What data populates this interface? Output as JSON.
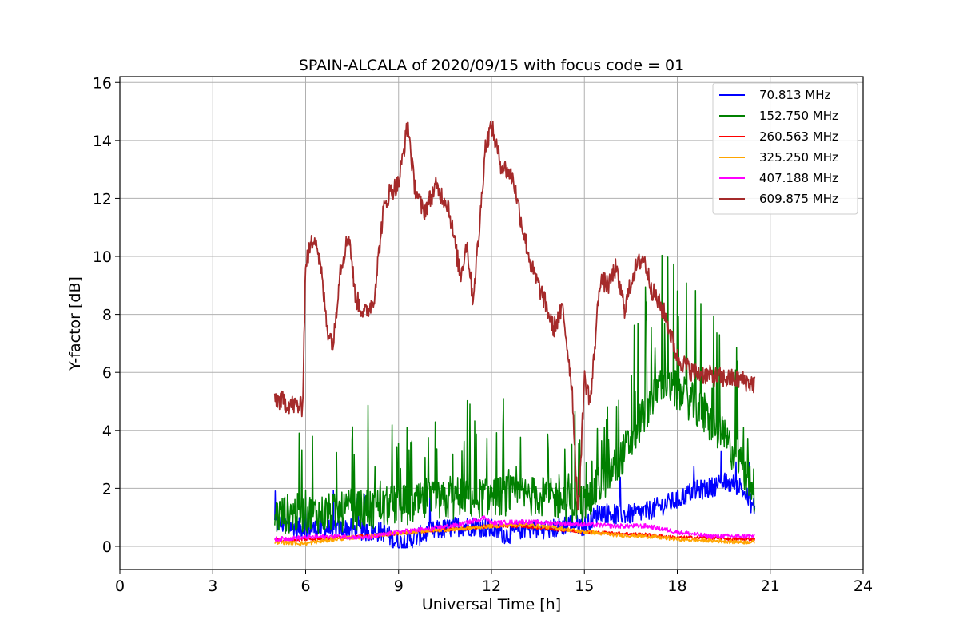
{
  "chart_data": {
    "type": "line",
    "title": "SPAIN-ALCALA of 2020/09/15 with focus code = 01",
    "xlabel": "Universal Time [h]",
    "ylabel": "Y-factor [dB]",
    "xlim": [
      0,
      24
    ],
    "ylim": [
      -0.8,
      16.2
    ],
    "xticks": [
      0,
      3,
      6,
      9,
      12,
      15,
      18,
      21,
      24
    ],
    "yticks": [
      0,
      2,
      4,
      6,
      8,
      10,
      12,
      14,
      16
    ],
    "grid": true,
    "legend_position": "upper right",
    "series": [
      {
        "name": " 70.813 MHz",
        "color": "#0000ff",
        "x": [
          5.0,
          5.5,
          6.0,
          6.5,
          7.0,
          7.5,
          8.0,
          8.5,
          9.0,
          9.5,
          10.0,
          10.5,
          11.0,
          11.5,
          12.0,
          12.5,
          13.0,
          13.5,
          14.0,
          14.5,
          15.0,
          15.5,
          16.0,
          16.5,
          17.0,
          17.5,
          18.0,
          18.5,
          19.0,
          19.5,
          20.0,
          20.5
        ],
        "y": [
          0.8,
          0.7,
          0.6,
          0.6,
          0.6,
          0.6,
          0.5,
          0.5,
          0.1,
          0.3,
          0.5,
          0.6,
          0.7,
          0.7,
          0.6,
          0.4,
          0.6,
          0.6,
          0.6,
          0.8,
          0.7,
          1.2,
          1.1,
          1.1,
          1.2,
          1.4,
          1.6,
          1.9,
          2.0,
          2.2,
          2.1,
          1.3
        ],
        "noise": 0.35
      },
      {
        "name": "152.750 MHz",
        "color": "#008000",
        "x": [
          5.0,
          5.5,
          6.0,
          6.5,
          7.0,
          7.5,
          8.0,
          8.5,
          9.0,
          9.5,
          10.0,
          10.5,
          11.0,
          11.5,
          12.0,
          12.5,
          13.0,
          13.5,
          14.0,
          14.5,
          15.0,
          15.5,
          16.0,
          16.5,
          17.0,
          17.5,
          18.0,
          18.5,
          19.0,
          19.5,
          20.0,
          20.5
        ],
        "y": [
          0.9,
          1.0,
          1.0,
          1.0,
          1.0,
          1.1,
          1.1,
          1.2,
          1.3,
          1.3,
          1.4,
          1.4,
          1.5,
          1.5,
          1.6,
          1.6,
          1.6,
          1.6,
          1.5,
          1.4,
          1.3,
          2.0,
          2.6,
          3.5,
          4.6,
          5.6,
          5.2,
          4.8,
          4.2,
          3.6,
          2.8,
          1.6
        ],
        "noise": 0.7
      },
      {
        "name": "260.563 MHz",
        "color": "#ff0000",
        "x": [
          5.0,
          6.0,
          7.0,
          8.0,
          9.0,
          10.0,
          11.0,
          12.0,
          13.0,
          14.0,
          15.0,
          16.0,
          17.0,
          18.0,
          19.0,
          20.0,
          20.5
        ],
        "y": [
          0.2,
          0.25,
          0.3,
          0.35,
          0.45,
          0.55,
          0.6,
          0.7,
          0.7,
          0.6,
          0.5,
          0.45,
          0.4,
          0.3,
          0.3,
          0.25,
          0.25
        ],
        "noise": 0.06
      },
      {
        "name": "325.250 MHz",
        "color": "#ffa500",
        "x": [
          5.0,
          6.0,
          7.0,
          8.0,
          9.0,
          10.0,
          11.0,
          12.0,
          13.0,
          14.0,
          15.0,
          16.0,
          17.0,
          18.0,
          19.0,
          20.0,
          20.5
        ],
        "y": [
          0.15,
          0.1,
          0.25,
          0.35,
          0.45,
          0.55,
          0.6,
          0.7,
          0.75,
          0.65,
          0.5,
          0.4,
          0.35,
          0.25,
          0.2,
          0.15,
          0.15
        ],
        "noise": 0.07
      },
      {
        "name": "407.188 MHz",
        "color": "#ff00ff",
        "x": [
          5.0,
          6.0,
          7.0,
          8.0,
          9.0,
          10.0,
          11.0,
          11.8,
          12.0,
          13.0,
          14.0,
          15.0,
          16.0,
          17.0,
          18.0,
          19.0,
          20.0,
          20.5
        ],
        "y": [
          0.25,
          0.3,
          0.35,
          0.3,
          0.5,
          0.6,
          0.75,
          1.0,
          0.8,
          0.85,
          0.8,
          0.75,
          0.7,
          0.7,
          0.5,
          0.35,
          0.35,
          0.35
        ],
        "noise": 0.08
      },
      {
        "name": "609.875 MHz",
        "color": "#a52a2a",
        "x": [
          5.0,
          5.5,
          5.9,
          6.0,
          6.3,
          6.5,
          6.7,
          6.9,
          7.1,
          7.4,
          7.6,
          7.9,
          8.2,
          8.5,
          8.7,
          9.0,
          9.3,
          9.5,
          9.8,
          10.2,
          10.6,
          11.0,
          11.2,
          11.4,
          11.6,
          11.8,
          12.0,
          12.3,
          12.7,
          13.0,
          13.3,
          13.7,
          14.0,
          14.3,
          14.6,
          14.8,
          15.0,
          15.2,
          15.5,
          15.8,
          16.0,
          16.3,
          16.6,
          16.9,
          17.2,
          17.6,
          18.0,
          18.5,
          19.0,
          19.5,
          20.0,
          20.5
        ],
        "y": [
          5.1,
          4.9,
          4.8,
          9.8,
          10.8,
          9.5,
          7.5,
          7.0,
          9.5,
          10.8,
          8.6,
          8.0,
          8.5,
          11.5,
          12.2,
          12.5,
          14.6,
          12.5,
          11.5,
          12.4,
          11.8,
          9.3,
          10.5,
          8.5,
          10.8,
          13.8,
          14.5,
          13.2,
          12.7,
          11.0,
          9.6,
          8.5,
          7.5,
          8.2,
          5.5,
          1.0,
          5.8,
          5.0,
          9.2,
          9.0,
          9.6,
          8.2,
          9.5,
          10.0,
          8.8,
          8.0,
          6.5,
          6.0,
          5.9,
          5.8,
          5.75,
          5.6
        ],
        "noise": 0.35
      }
    ]
  }
}
